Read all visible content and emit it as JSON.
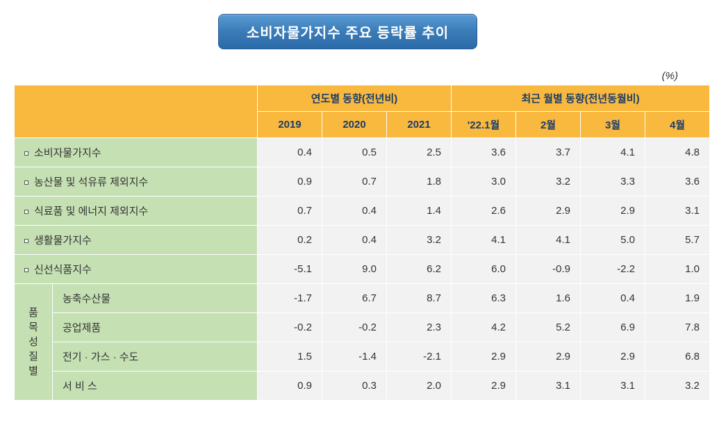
{
  "title": "소비자물가지수 주요 등락률 추이",
  "unit": "(%)",
  "header": {
    "group1": "연도별 동향(전년비)",
    "group2": "최근 월별 동향(전년동월비)",
    "cols": [
      "2019",
      "2020",
      "2021",
      "'22.1월",
      "2월",
      "3월",
      "4월"
    ]
  },
  "rows": [
    {
      "label": "소비자물가지수",
      "vals": [
        "0.4",
        "0.5",
        "2.5",
        "3.6",
        "3.7",
        "4.1",
        "4.8"
      ]
    },
    {
      "label": "농산물 및 석유류 제외지수",
      "vals": [
        "0.9",
        "0.7",
        "1.8",
        "3.0",
        "3.2",
        "3.3",
        "3.6"
      ]
    },
    {
      "label": "식료품 및 에너지 제외지수",
      "vals": [
        "0.7",
        "0.4",
        "1.4",
        "2.6",
        "2.9",
        "2.9",
        "3.1"
      ]
    },
    {
      "label": "생활물가지수",
      "vals": [
        "0.2",
        "0.4",
        "3.2",
        "4.1",
        "4.1",
        "5.0",
        "5.7"
      ]
    },
    {
      "label": "신선식품지수",
      "vals": [
        "-5.1",
        "9.0",
        "6.2",
        "6.0",
        "-0.9",
        "-2.2",
        "1.0"
      ]
    }
  ],
  "subgroup_label": "품목성질별",
  "subrows": [
    {
      "label": "농축수산물",
      "vals": [
        "-1.7",
        "6.7",
        "8.7",
        "6.3",
        "1.6",
        "0.4",
        "1.9"
      ]
    },
    {
      "label": "공업제품",
      "vals": [
        "-0.2",
        "-0.2",
        "2.3",
        "4.2",
        "5.2",
        "6.9",
        "7.8"
      ]
    },
    {
      "label": "전기 · 가스 · 수도",
      "vals": [
        "1.5",
        "-1.4",
        "-2.1",
        "2.9",
        "2.9",
        "2.9",
        "6.8"
      ]
    },
    {
      "label": "서 비 스",
      "vals": [
        "0.9",
        "0.3",
        "2.0",
        "2.9",
        "3.1",
        "3.1",
        "3.2"
      ]
    }
  ],
  "colors": {
    "title_bg_top": "#5a9cd4",
    "title_bg_bottom": "#2a6ba8",
    "header_bg": "#f9b83e",
    "header_text": "#1a3d6b",
    "row_bg": "#c5e0b3",
    "data_bg": "#f2f2f2",
    "border": "#ffffff"
  },
  "typography": {
    "title_fontsize": 20,
    "header_fontsize": 15,
    "body_fontsize": 15
  }
}
